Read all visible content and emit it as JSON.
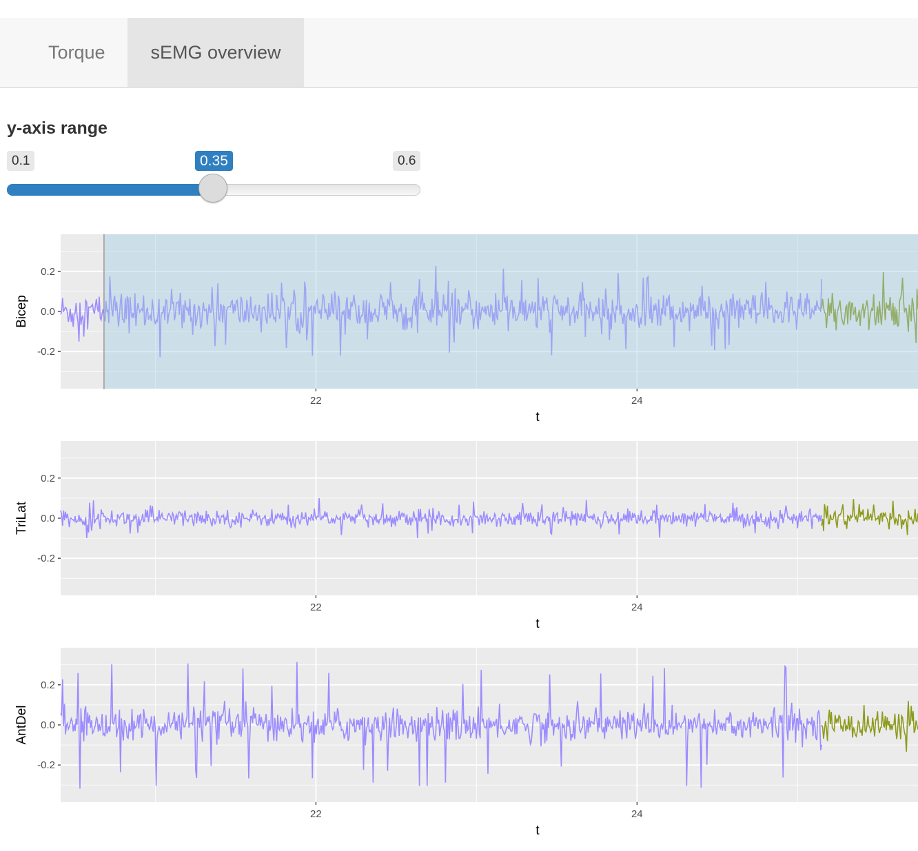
{
  "tabs": [
    {
      "label": "Torque",
      "active": false
    },
    {
      "label": "sEMG overview",
      "active": true
    }
  ],
  "slider": {
    "label": "y-axis range",
    "min": 0.1,
    "max": 0.6,
    "value": 0.35,
    "min_label": "0.1",
    "max_label": "0.6",
    "value_label": "0.35",
    "accent": "#2f7fc1"
  },
  "chart_data": [
    {
      "type": "line",
      "ylabel": "Bicep",
      "xlabel": "t",
      "x_ticks": [
        "22",
        "24"
      ],
      "y_ticks": [
        "0.2",
        "0.0",
        "-0.2"
      ],
      "xlim": [
        20.41,
        25.75
      ],
      "ylim": [
        -0.35,
        0.35
      ],
      "grid": true,
      "brush": {
        "x_start": 20.68,
        "x_end": 25.75,
        "color": "#9ecae1"
      },
      "segments": [
        {
          "x_start": 20.41,
          "x_end": 25.15,
          "color": "#9b8cff",
          "typical_amplitude": 0.08,
          "peak": 0.23
        },
        {
          "x_start": 25.15,
          "x_end": 25.75,
          "color": "#8d9a1c",
          "typical_amplitude": 0.09,
          "peak": 0.2
        }
      ]
    },
    {
      "type": "line",
      "ylabel": "TriLat",
      "xlabel": "t",
      "x_ticks": [
        "22",
        "24"
      ],
      "y_ticks": [
        "0.2",
        "0.0",
        "-0.2"
      ],
      "xlim": [
        20.41,
        25.75
      ],
      "ylim": [
        -0.35,
        0.35
      ],
      "grid": true,
      "segments": [
        {
          "x_start": 20.41,
          "x_end": 25.15,
          "color": "#9b8cff",
          "typical_amplitude": 0.035,
          "peak": 0.1
        },
        {
          "x_start": 25.15,
          "x_end": 25.75,
          "color": "#8d9a1c",
          "typical_amplitude": 0.04,
          "peak": 0.1
        }
      ]
    },
    {
      "type": "line",
      "ylabel": "AntDel",
      "xlabel": "t",
      "x_ticks": [
        "22",
        "24"
      ],
      "y_ticks": [
        "0.2",
        "0.0",
        "-0.2"
      ],
      "xlim": [
        20.41,
        25.75
      ],
      "ylim": [
        -0.35,
        0.35
      ],
      "grid": true,
      "segments": [
        {
          "x_start": 20.41,
          "x_end": 25.15,
          "color": "#9b8cff",
          "typical_amplitude": 0.07,
          "peak": 0.32
        },
        {
          "x_start": 25.15,
          "x_end": 25.75,
          "color": "#8d9a1c",
          "typical_amplitude": 0.06,
          "peak": 0.14
        }
      ]
    }
  ]
}
